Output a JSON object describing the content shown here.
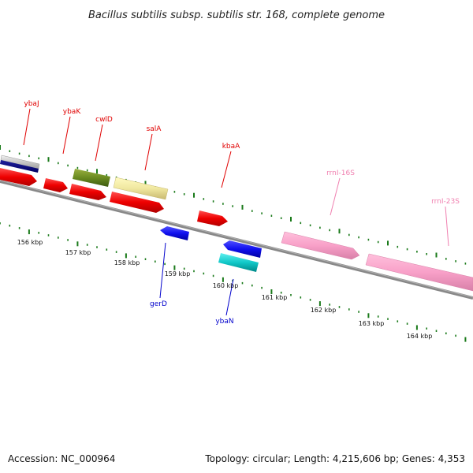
{
  "header": {
    "title": "Bacillus subtilis subsp. subtilis str. 168, complete genome"
  },
  "footer": {
    "accession": "Accession: NC_000964",
    "summary": "Topology: circular; Length: 4,215,606 bp; Genes: 4,353"
  },
  "colors": {
    "label_red": "#e00000",
    "label_blue": "#0000cc",
    "label_pink": "#f080b0",
    "backbone": "#888888",
    "tick_green": "#1a7a1a"
  },
  "kbp_labels": [
    "156 kbp",
    "157 kbp",
    "158 kbp",
    "159 kbp",
    "160 kbp",
    "161 kbp",
    "162 kbp",
    "163 kbp",
    "164 kbp"
  ],
  "gene_labels": [
    {
      "id": "ybaJ",
      "text": "ybaJ",
      "color": "red"
    },
    {
      "id": "ybaK",
      "text": "ybaK",
      "color": "red"
    },
    {
      "id": "cwlD",
      "text": "cwlD",
      "color": "red"
    },
    {
      "id": "salA",
      "text": "salA",
      "color": "red"
    },
    {
      "id": "kbaA",
      "text": "kbaA",
      "color": "red"
    },
    {
      "id": "rrnI-16S",
      "text": "rrnI-16S",
      "color": "pink"
    },
    {
      "id": "rrnI-23S",
      "text": "rrnI-23S",
      "color": "pink"
    },
    {
      "id": "gerD",
      "text": "gerD",
      "color": "blue"
    },
    {
      "id": "ybaN",
      "text": "ybaN",
      "color": "blue"
    }
  ]
}
